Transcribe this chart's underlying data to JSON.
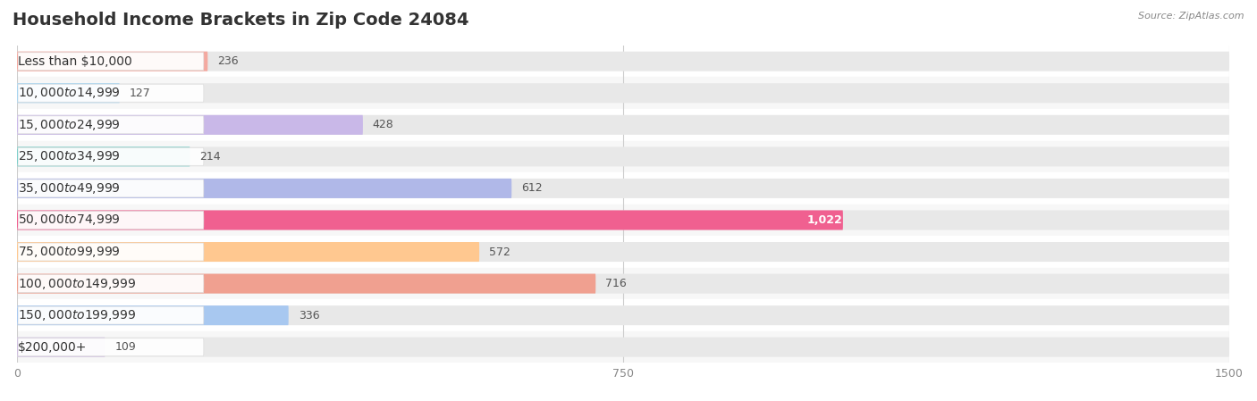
{
  "title": "Household Income Brackets in Zip Code 24084",
  "source": "Source: ZipAtlas.com",
  "categories": [
    "Less than $10,000",
    "$10,000 to $14,999",
    "$15,000 to $24,999",
    "$25,000 to $34,999",
    "$35,000 to $49,999",
    "$50,000 to $74,999",
    "$75,000 to $99,999",
    "$100,000 to $149,999",
    "$150,000 to $199,999",
    "$200,000+"
  ],
  "values": [
    236,
    127,
    428,
    214,
    612,
    1022,
    572,
    716,
    336,
    109
  ],
  "bar_colors": [
    "#f4a9a0",
    "#a8d4f0",
    "#c9b8e8",
    "#7fcfca",
    "#b0b8e8",
    "#f06090",
    "#ffc890",
    "#f0a090",
    "#a8c8f0",
    "#d0c0e0"
  ],
  "xlim": [
    0,
    1500
  ],
  "xticks": [
    0,
    750,
    1500
  ],
  "bar_bg_color": "#e8e8e8",
  "value_color_normal": "#555555",
  "value_color_highlight": "#ffffff",
  "highlight_index": 5,
  "label_fontsize": 10,
  "value_fontsize": 9,
  "title_fontsize": 14,
  "bar_height": 0.62,
  "row_bg_colors": [
    "#ffffff",
    "#f7f7f7"
  ]
}
